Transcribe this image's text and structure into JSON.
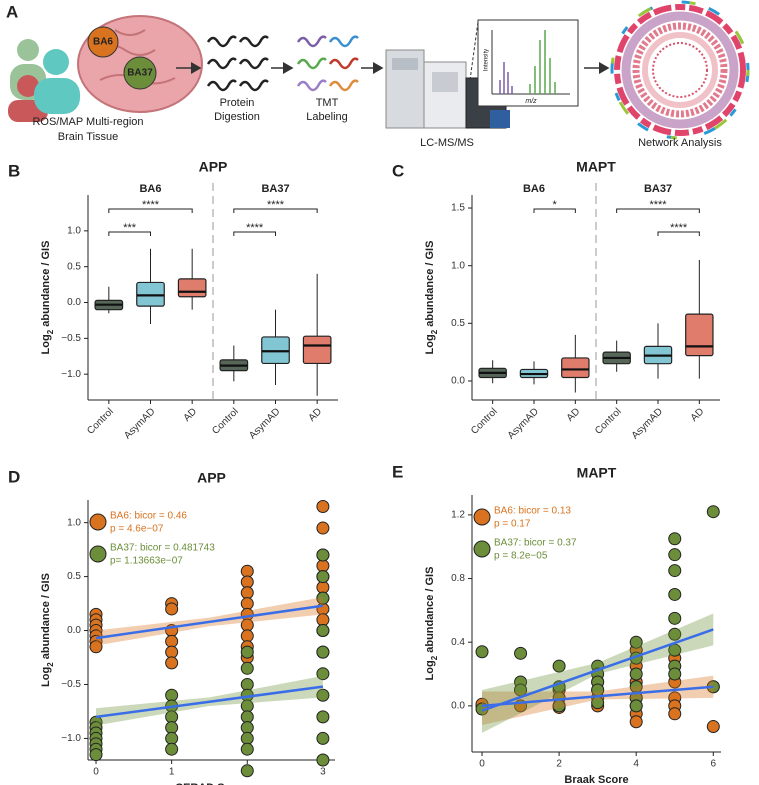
{
  "panel_a": {
    "label": "A",
    "tissue": [
      "ROS/MAP Multi-region",
      "Brain Tissue"
    ],
    "regions": [
      "BA6",
      "BA37"
    ],
    "digestion": [
      "Protein",
      "Digestion"
    ],
    "labeling": [
      "TMT",
      "Labeling"
    ],
    "ms": "LC-MS/MS",
    "spectrum_axes": [
      "Intensity",
      "m/z"
    ],
    "network": "Network Analysis"
  },
  "chart_data": [
    {
      "type": "box",
      "label": "B",
      "title": "APP",
      "facets": [
        "BA6",
        "BA37"
      ],
      "categories": [
        "Control",
        "AsymAD",
        "AD"
      ],
      "colors": [
        "#56675a",
        "#82c6d3",
        "#e07c6c"
      ],
      "ylabel": [
        "Log",
        "2",
        " abundance / GIS"
      ],
      "ylim": [
        -1.36,
        1.5
      ],
      "yticks": [
        {
          "value": -1.0,
          "label": "−1.0"
        },
        {
          "value": -0.5,
          "label": "−0.5"
        },
        {
          "value": 0.0,
          "label": "0.0"
        },
        {
          "value": 0.5,
          "label": "0.5"
        },
        {
          "value": 1.0,
          "label": "1.0"
        }
      ],
      "boxes": [
        [
          {
            "min": -0.15,
            "q1": -0.1,
            "median": -0.03,
            "q3": 0.03,
            "max": 0.22
          },
          {
            "min": -0.3,
            "q1": -0.05,
            "median": 0.1,
            "q3": 0.28,
            "max": 0.75
          },
          {
            "min": -0.1,
            "q1": 0.08,
            "median": 0.15,
            "q3": 0.33,
            "max": 0.75
          }
        ],
        [
          {
            "min": -1.1,
            "q1": -0.95,
            "median": -0.88,
            "q3": -0.8,
            "max": -0.6
          },
          {
            "min": -1.15,
            "q1": -0.85,
            "median": -0.68,
            "q3": -0.48,
            "max": -0.1
          },
          {
            "min": -1.3,
            "q1": -0.85,
            "median": -0.6,
            "q3": -0.47,
            "max": 0.4
          }
        ]
      ],
      "annotations": [
        {
          "facet": 0,
          "from": 0,
          "to": 2,
          "label": "****"
        },
        {
          "facet": 0,
          "from": 0,
          "to": 1,
          "label": "***"
        },
        {
          "facet": 1,
          "from": 0,
          "to": 2,
          "label": "****"
        },
        {
          "facet": 1,
          "from": 0,
          "to": 1,
          "label": "****"
        }
      ]
    },
    {
      "type": "box",
      "label": "C",
      "title": "MAPT",
      "facets": [
        "BA6",
        "BA37"
      ],
      "categories": [
        "Control",
        "AsymAD",
        "AD"
      ],
      "colors": [
        "#56675a",
        "#82c6d3",
        "#e07c6c"
      ],
      "ylabel": [
        "Log",
        "2",
        " abundance / GIS"
      ],
      "ylim": [
        -0.165,
        1.613
      ],
      "yticks": [
        {
          "value": 0.0,
          "label": "0.0"
        },
        {
          "value": 0.5,
          "label": "0.5"
        },
        {
          "value": 1.0,
          "label": "1.0"
        },
        {
          "value": 1.5,
          "label": "1.5"
        }
      ],
      "boxes": [
        [
          {
            "min": -0.02,
            "q1": 0.03,
            "median": 0.07,
            "q3": 0.11,
            "max": 0.18
          },
          {
            "min": -0.03,
            "q1": 0.03,
            "median": 0.06,
            "q3": 0.1,
            "max": 0.17
          },
          {
            "min": -0.1,
            "q1": 0.03,
            "median": 0.1,
            "q3": 0.2,
            "max": 0.4
          }
        ],
        [
          {
            "min": 0.08,
            "q1": 0.15,
            "median": 0.2,
            "q3": 0.25,
            "max": 0.35
          },
          {
            "min": 0.02,
            "q1": 0.15,
            "median": 0.22,
            "q3": 0.3,
            "max": 0.5
          },
          {
            "min": 0.02,
            "q1": 0.22,
            "median": 0.3,
            "q3": 0.58,
            "max": 1.05
          }
        ]
      ],
      "annotations": [
        {
          "facet": 0,
          "from": 1,
          "to": 2,
          "label": "*"
        },
        {
          "facet": 1,
          "from": 0,
          "to": 2,
          "label": "****"
        },
        {
          "facet": 1,
          "from": 1,
          "to": 2,
          "label": "****"
        }
      ]
    },
    {
      "type": "scatter",
      "label": "D",
      "title": "APP",
      "xlabel": "CERAD Score",
      "ylabel": [
        "Log",
        "2",
        " abundance / GIS"
      ],
      "xlim": [
        -0.106,
        3.16
      ],
      "xticks": [
        0,
        1,
        2,
        3
      ],
      "ylim": [
        -1.2,
        1.21
      ],
      "yticks": [
        {
          "value": -1.0,
          "label": "−1.0"
        },
        {
          "value": -0.5,
          "label": "−0.5"
        },
        {
          "value": 0.0,
          "label": "0.0"
        },
        {
          "value": 0.5,
          "label": "0.5"
        },
        {
          "value": 1.0,
          "label": "1.0"
        }
      ],
      "fit_color": "#3a6ee8",
      "series": [
        {
          "color": "#d9731f",
          "legend": [
            "BA6: bicor = 0.46",
            "p =  4.6e−07"
          ],
          "x": [
            0,
            0,
            0,
            0,
            0,
            0,
            0,
            1,
            1,
            1,
            1,
            1,
            1,
            2,
            2,
            2,
            2,
            2,
            2,
            2,
            2,
            2,
            3,
            3,
            3,
            3,
            3,
            3,
            3,
            3,
            3,
            3,
            3
          ],
          "y": [
            0.15,
            0.1,
            0.05,
            0,
            -0.05,
            -0.1,
            -0.15,
            0.25,
            0.2,
            0,
            -0.1,
            -0.2,
            -0.3,
            0.55,
            0.45,
            0.35,
            0.25,
            0.15,
            0.05,
            -0.05,
            -0.15,
            -0.25,
            1.15,
            0.95,
            0.7,
            0.6,
            0.5,
            0.4,
            0.3,
            0.2,
            0.1,
            0,
            -0.2
          ],
          "fit": {
            "x": [
              0,
              3
            ],
            "y": [
              -0.07,
              0.23
            ]
          },
          "band": {
            "x": [
              0,
              1.5,
              3
            ],
            "low": [
              -0.14,
              0.04,
              0.15
            ],
            "high": [
              0.0,
              0.12,
              0.31
            ]
          }
        },
        {
          "color": "#6c8e3a",
          "legend": [
            "BA37: bicor = 0.481743",
            "p= 1.13663e−07"
          ],
          "x": [
            0,
            0,
            0,
            0,
            0,
            0,
            0,
            1,
            1,
            1,
            1,
            1,
            1,
            2,
            2,
            2,
            2,
            2,
            2,
            2,
            2,
            2,
            2,
            3,
            3,
            3,
            3,
            3,
            3,
            3,
            3,
            3,
            3
          ],
          "y": [
            -0.85,
            -0.9,
            -0.95,
            -1.0,
            -1.05,
            -1.1,
            -1.15,
            -0.6,
            -0.7,
            -0.8,
            -0.9,
            -1.0,
            -1.1,
            -0.2,
            -0.35,
            -0.5,
            -0.6,
            -0.7,
            -0.8,
            -0.9,
            -1.0,
            -1.1,
            -1.3,
            0.7,
            0.5,
            0.3,
            0,
            -0.2,
            -0.4,
            -0.6,
            -0.8,
            -1.0,
            -1.2
          ],
          "fit": {
            "x": [
              0,
              3
            ],
            "y": [
              -0.8,
              -0.52
            ]
          },
          "band": {
            "x": [
              0,
              1.5,
              3
            ],
            "low": [
              -0.88,
              -0.7,
              -0.62
            ],
            "high": [
              -0.72,
              -0.62,
              -0.42
            ]
          }
        }
      ]
    },
    {
      "type": "scatter",
      "label": "E",
      "title": "MAPT",
      "xlabel": "Braak Score",
      "ylabel": [
        "Log",
        "2",
        " abundance / GIS"
      ],
      "xlim": [
        -0.26,
        6.2
      ],
      "xticks": [
        0,
        2,
        4,
        6
      ],
      "ylim": [
        -0.29,
        1.325
      ],
      "yticks": [
        {
          "value": 0.0,
          "label": "0.0"
        },
        {
          "value": 0.4,
          "label": "0.4"
        },
        {
          "value": 0.8,
          "label": "0.8"
        },
        {
          "value": 1.2,
          "label": "1.2"
        }
      ],
      "fit_color": "#3a6ee8",
      "series": [
        {
          "color": "#d9731f",
          "legend": [
            "BA6: bicor = 0.13",
            "p =  0.17"
          ],
          "x": [
            0,
            0,
            1,
            1,
            2,
            2,
            2,
            3,
            3,
            3,
            3,
            4,
            4,
            4,
            4,
            4,
            4,
            4,
            5,
            5,
            5,
            5,
            5,
            6,
            6
          ],
          "y": [
            0.0,
            0.01,
            0.1,
            0.0,
            0.1,
            0.0,
            -0.01,
            0.15,
            0.1,
            0.05,
            0,
            0.35,
            0.25,
            0.15,
            0.05,
            0,
            -0.05,
            -0.1,
            0.3,
            0.15,
            0.05,
            0,
            -0.05,
            0.12,
            -0.13
          ],
          "fit": {
            "x": [
              0,
              6
            ],
            "y": [
              0.0,
              0.12
            ]
          },
          "band": {
            "x": [
              0,
              3,
              6
            ],
            "low": [
              -0.12,
              0.04,
              0.05
            ],
            "high": [
              0.09,
              0.09,
              0.19
            ]
          }
        },
        {
          "color": "#6c8e3a",
          "legend": [
            "BA37: bicor = 0.37",
            "p = 8.2e−05"
          ],
          "x": [
            0,
            0,
            1,
            1,
            1,
            2,
            2,
            2,
            2,
            3,
            3,
            3,
            3,
            3,
            4,
            4,
            4,
            4,
            4,
            4,
            5,
            5,
            5,
            5,
            5,
            5,
            5,
            5,
            5,
            6,
            6
          ],
          "y": [
            0.34,
            -0.02,
            0.33,
            0.15,
            0.1,
            0.25,
            0.12,
            0.05,
            0.0,
            0.25,
            0.2,
            0.15,
            0.1,
            0.02,
            0.4,
            0.3,
            0.2,
            0.12,
            0.05,
            0.0,
            1.05,
            0.95,
            0.85,
            0.7,
            0.55,
            0.45,
            0.35,
            0.25,
            0.2,
            1.22,
            0.12
          ],
          "fit": {
            "x": [
              0,
              6
            ],
            "y": [
              -0.03,
              0.48
            ]
          },
          "band": {
            "x": [
              0,
              3,
              6
            ],
            "low": [
              -0.17,
              0.2,
              0.38
            ],
            "high": [
              0.1,
              0.27,
              0.58
            ]
          }
        }
      ]
    }
  ]
}
